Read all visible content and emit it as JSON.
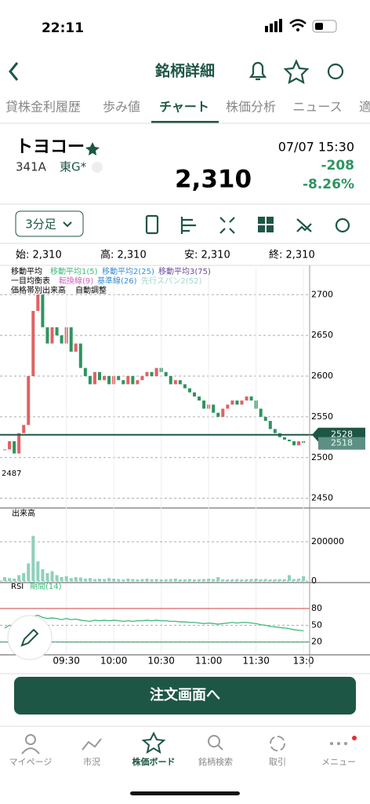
{
  "status_bar": {
    "time": "22:11"
  },
  "header": {
    "title": "銘柄詳細"
  },
  "tabs": [
    "貸株金利履歴",
    "歩み値",
    "チャート",
    "株価分析",
    "ニュース",
    "適"
  ],
  "stock": {
    "name": "トヨコー",
    "code": "341A",
    "market": "東G*",
    "datetime": "07/07 15:30",
    "price": "2,310",
    "change": "-208",
    "change_pct": "-8.26%"
  },
  "toolbar": {
    "interval": "3分足"
  },
  "ohlc": [
    "始: 2,310",
    "高: 2,310",
    "安: 2,310",
    "終: 2,310"
  ],
  "legend": {
    "ma": "移動平均",
    "ma1": "移動平均1(5)",
    "ma2": "移動平均2(25)",
    "ma3": "移動平均3(75)",
    "ichimoku": "一目均衡表",
    "tenkan": "転換線(9)",
    "kijun": "基準線(26)",
    "senkou": "先行スパン2(52)",
    "profile": "価格帯別出来高",
    "auto": "自動調整"
  },
  "price_labels": {
    "low": "2487",
    "current": "2528",
    "last": "2518"
  },
  "volume_title": "出来高",
  "rsi_title": "RSI",
  "rsi_period": "期間(14)",
  "order_button": "注文画面へ",
  "nav": [
    "マイページ",
    "市況",
    "株価ボード",
    "銘柄検索",
    "取引",
    "メニュー"
  ],
  "chart_data": [
    {
      "type": "candlestick",
      "up_color": "#e06262",
      "down_color": "#2e9460",
      "closes": [
        2510,
        2520,
        2505,
        2530,
        2540,
        2600,
        2680,
        2700,
        2660,
        2640,
        2660,
        2650,
        2640,
        2660,
        2630,
        2640,
        2610,
        2600,
        2590,
        2605,
        2595,
        2600,
        2590,
        2600,
        2595,
        2590,
        2600,
        2590,
        2595,
        2600,
        2605,
        2600,
        2610,
        2605,
        2600,
        2590,
        2595,
        2590,
        2585,
        2580,
        2575,
        2570,
        2560,
        2565,
        2555,
        2550,
        2560,
        2565,
        2570,
        2565,
        2570,
        2575,
        2570,
        2560,
        2550,
        2545,
        2535,
        2530,
        2525,
        2522,
        2520,
        2515,
        2520,
        2518
      ],
      "ylim": [
        2440,
        2734
      ],
      "yticks": [
        2700,
        2650,
        2600,
        2550,
        2500,
        2450
      ],
      "xticks": [
        {
          "value": 13,
          "label": "09:30"
        },
        {
          "value": 23,
          "label": "10:00"
        },
        {
          "value": 33,
          "label": "10:30"
        },
        {
          "value": 43,
          "label": "11:00"
        },
        {
          "value": 53,
          "label": "11:30"
        },
        {
          "value": 63,
          "label": "13:0"
        }
      ],
      "current_price": 2528
    },
    {
      "type": "bar",
      "color": "#8fd0bd",
      "values": [
        20000,
        15000,
        12000,
        30000,
        40000,
        90000,
        230000,
        100000,
        60000,
        40000,
        50000,
        30000,
        20000,
        25000,
        15000,
        20000,
        18000,
        12000,
        15000,
        10000,
        12000,
        10000,
        15000,
        12000,
        10000,
        8000,
        12000,
        10000,
        8000,
        10000,
        12000,
        9000,
        10000,
        8000,
        9000,
        10000,
        12000,
        8000,
        9000,
        10000,
        8000,
        9000,
        10000,
        12000,
        10000,
        20000,
        9000,
        8000,
        9000,
        10000,
        8000,
        9000,
        10000,
        12000,
        9000,
        10000,
        8000,
        9000,
        10000,
        9000,
        30000,
        10000,
        12000,
        25000
      ],
      "ylim": [
        0,
        368000
      ],
      "yticks": [
        200000,
        0
      ]
    },
    {
      "type": "line",
      "color": "#3fb87a",
      "values": [
        45,
        50,
        48,
        55,
        58,
        62,
        66,
        68,
        64,
        62,
        63,
        62,
        60,
        62,
        60,
        61,
        59,
        58,
        57,
        59,
        58,
        59,
        58,
        59,
        58,
        57,
        58,
        57,
        58,
        58,
        59,
        58,
        59,
        58,
        58,
        57,
        57,
        56,
        56,
        55,
        55,
        54,
        53,
        54,
        53,
        52,
        53,
        54,
        55,
        54,
        55,
        55,
        54,
        53,
        51,
        50,
        48,
        47,
        46,
        45,
        44,
        42,
        41,
        40
      ],
      "ylim": [
        0,
        122
      ],
      "yticks": [
        80,
        50,
        20
      ]
    }
  ]
}
